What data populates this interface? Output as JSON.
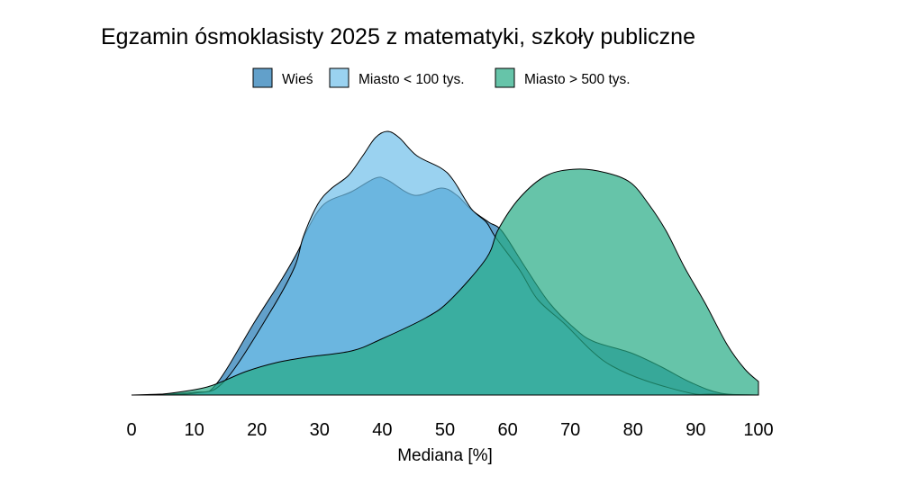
{
  "chart_data": {
    "type": "area",
    "subtype": "density",
    "title": "Egzamin ósmoklasisty 2025 z matematyki, szkoły publiczne",
    "xlabel": "Mediana [%]",
    "ylabel": "",
    "xlim": [
      0,
      100
    ],
    "x_ticks": [
      "0",
      "10",
      "20",
      "30",
      "40",
      "50",
      "60",
      "70",
      "80",
      "90",
      "100"
    ],
    "grid": false,
    "legend_position": "top",
    "series": [
      {
        "name": "Wieś",
        "color": "#1f78b4",
        "opacity": 0.7,
        "points": [
          [
            0,
            0
          ],
          [
            10.1,
            0.0003
          ],
          [
            13.5,
            0.0012
          ],
          [
            19.7,
            0.0082
          ],
          [
            24.0,
            0.0129
          ],
          [
            26.7,
            0.0162
          ],
          [
            27.9,
            0.0182
          ],
          [
            30.7,
            0.0212
          ],
          [
            35.1,
            0.0226
          ],
          [
            38.9,
            0.0241
          ],
          [
            40.8,
            0.0239
          ],
          [
            45.1,
            0.0222
          ],
          [
            49.4,
            0.023
          ],
          [
            51.9,
            0.0222
          ],
          [
            54.2,
            0.0206
          ],
          [
            57.0,
            0.0192
          ],
          [
            59.1,
            0.0182
          ],
          [
            62.8,
            0.0142
          ],
          [
            66.7,
            0.0102
          ],
          [
            71.0,
            0.0072
          ],
          [
            73.9,
            0.0059
          ],
          [
            79.6,
            0.0047
          ],
          [
            84.3,
            0.0032
          ],
          [
            89.2,
            0.0014
          ],
          [
            94.0,
            0.0002
          ],
          [
            100,
            0
          ]
        ]
      },
      {
        "name": "Miasto < 100 tys.",
        "color": "#6fbfea",
        "opacity": 0.7,
        "points": [
          [
            0,
            0
          ],
          [
            10,
            0.0002
          ],
          [
            14.9,
            0.0016
          ],
          [
            22.1,
            0.0092
          ],
          [
            26.0,
            0.0142
          ],
          [
            27.4,
            0.0176
          ],
          [
            29.7,
            0.0212
          ],
          [
            31.8,
            0.0229
          ],
          [
            34.6,
            0.0244
          ],
          [
            36.9,
            0.0266
          ],
          [
            38.9,
            0.0286
          ],
          [
            40.8,
            0.0293
          ],
          [
            42.7,
            0.0286
          ],
          [
            45.5,
            0.0266
          ],
          [
            49.4,
            0.0252
          ],
          [
            51.3,
            0.0239
          ],
          [
            54.2,
            0.0207
          ],
          [
            56.6,
            0.0192
          ],
          [
            58.0,
            0.0176
          ],
          [
            61.9,
            0.0139
          ],
          [
            64.8,
            0.0106
          ],
          [
            69.1,
            0.0079
          ],
          [
            73.4,
            0.0049
          ],
          [
            76.7,
            0.0032
          ],
          [
            82.0,
            0.0016
          ],
          [
            89.2,
            0.0002
          ],
          [
            92.5,
            0.0001
          ],
          [
            100,
            0
          ]
        ]
      },
      {
        "name": "Miasto > 500 tys.",
        "color": "#25ab85",
        "opacity": 0.7,
        "points": [
          [
            0,
            0
          ],
          [
            4.9,
            0.0001
          ],
          [
            12.1,
            0.0009
          ],
          [
            18.2,
            0.0026
          ],
          [
            23.1,
            0.0036
          ],
          [
            27.9,
            0.0042
          ],
          [
            35.1,
            0.0049
          ],
          [
            39.8,
            0.0062
          ],
          [
            47.0,
            0.0086
          ],
          [
            50.9,
            0.0106
          ],
          [
            56.6,
            0.0152
          ],
          [
            58.5,
            0.0184
          ],
          [
            61.9,
            0.0219
          ],
          [
            66.2,
            0.0244
          ],
          [
            71.0,
            0.0251
          ],
          [
            75.7,
            0.0247
          ],
          [
            79.6,
            0.0236
          ],
          [
            82.5,
            0.0212
          ],
          [
            85.3,
            0.0182
          ],
          [
            88.2,
            0.0142
          ],
          [
            91.5,
            0.0102
          ],
          [
            95.0,
            0.0056
          ],
          [
            97.8,
            0.0029
          ],
          [
            100,
            0.0015
          ]
        ]
      }
    ]
  }
}
